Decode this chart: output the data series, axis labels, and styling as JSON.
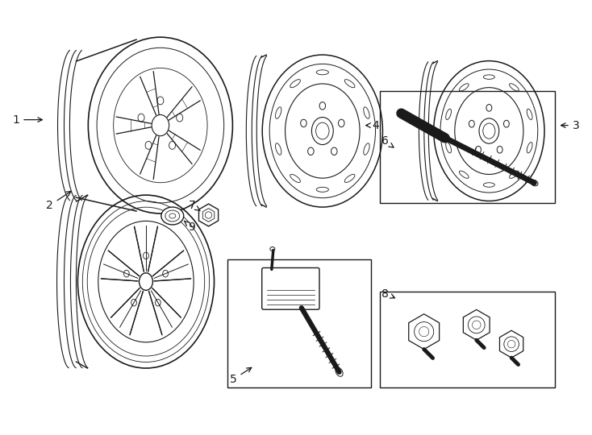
{
  "background_color": "#ffffff",
  "line_color": "#1a1a1a",
  "fig_width": 7.34,
  "fig_height": 5.4,
  "dpi": 100
}
